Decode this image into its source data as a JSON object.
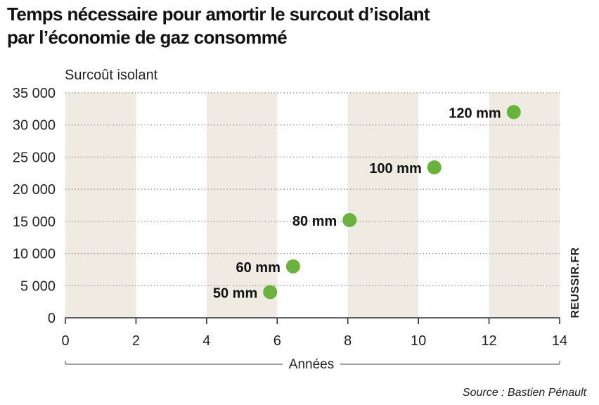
{
  "title_lines": [
    "Temps nécessaire pour amortir le surcout d’isolant",
    "par l’économie de gaz consommé"
  ],
  "source": "Source : Bastien Pénault",
  "brand": "REUSSIR.FR",
  "colors": {
    "point": "#6ab23e",
    "band": "#efebe3",
    "grid": "#9a9a9a"
  },
  "chart_data": {
    "type": "scatter",
    "xlabel": "Années",
    "ylabel": "Surcoût isolant",
    "xlim": [
      0,
      14
    ],
    "ylim": [
      0,
      35000
    ],
    "x_ticks": [
      0,
      2,
      4,
      6,
      8,
      10,
      12,
      14
    ],
    "x_tick_labels": [
      "0",
      "2",
      "4",
      "6",
      "8",
      "10",
      "12",
      "14"
    ],
    "y_ticks": [
      0,
      5000,
      10000,
      15000,
      20000,
      25000,
      30000,
      35000
    ],
    "y_tick_labels": [
      "0",
      "5 000",
      "10 000",
      "15 000",
      "20 000",
      "25 000",
      "30 000",
      "35 000"
    ],
    "grid": "horizontal dotted",
    "points": [
      {
        "label": "50 mm",
        "x": 5.8,
        "y": 4000
      },
      {
        "label": "60 mm",
        "x": 6.45,
        "y": 8000
      },
      {
        "label": "80 mm",
        "x": 8.05,
        "y": 15200
      },
      {
        "label": "100 mm",
        "x": 10.45,
        "y": 23400
      },
      {
        "label": "120 mm",
        "x": 12.7,
        "y": 32000
      }
    ]
  }
}
